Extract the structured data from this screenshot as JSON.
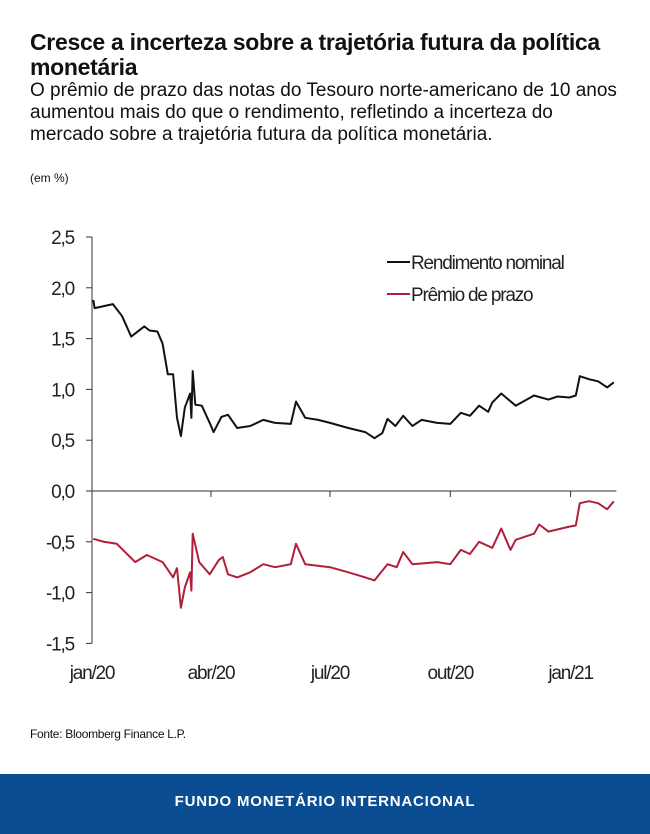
{
  "header": {
    "title": "Cresce a incerteza sobre a trajetória futura da política monetária",
    "subtitle": "O prêmio de prazo das notas do Tesouro norte-americano de 10 anos aumentou mais do que o rendimento, refletindo a incerteza do mercado sobre a trajetória futura da política monetária.",
    "unit": "(em %)"
  },
  "chart_data": {
    "type": "line",
    "title": "",
    "xlabel": "",
    "ylabel": "",
    "ylim": [
      -1.5,
      2.5
    ],
    "y_ticks": [
      "2,5",
      "2,0",
      "1,5",
      "1,0",
      "0,5",
      "0,0",
      "-0,5",
      "-1,0",
      "-1,5"
    ],
    "y_tick_values": [
      2.5,
      2.0,
      1.5,
      1.0,
      0.5,
      0.0,
      -0.5,
      -1.0,
      -1.5
    ],
    "x_ticks": [
      "jan/20",
      "abr/20",
      "jul/20",
      "out/20",
      "jan/21"
    ],
    "x_tick_dates": [
      "2020-01-01",
      "2020-04-01",
      "2020-07-01",
      "2020-10-01",
      "2021-01-01"
    ],
    "xlim": [
      "2020-01-01",
      "2021-02-05"
    ],
    "grid": false,
    "legend_position": "top-right",
    "series": [
      {
        "name": "Rendimento nominal",
        "color": "#111111",
        "points": [
          [
            "2020-01-02",
            1.88
          ],
          [
            "2020-01-03",
            1.8
          ],
          [
            "2020-01-10",
            1.82
          ],
          [
            "2020-01-17",
            1.84
          ],
          [
            "2020-01-24",
            1.72
          ],
          [
            "2020-01-31",
            1.52
          ],
          [
            "2020-02-10",
            1.62
          ],
          [
            "2020-02-14",
            1.58
          ],
          [
            "2020-02-20",
            1.57
          ],
          [
            "2020-02-24",
            1.45
          ],
          [
            "2020-02-28",
            1.15
          ],
          [
            "2020-03-03",
            1.15
          ],
          [
            "2020-03-06",
            0.72
          ],
          [
            "2020-03-09",
            0.54
          ],
          [
            "2020-03-12",
            0.82
          ],
          [
            "2020-03-16",
            0.96
          ],
          [
            "2020-03-17",
            0.72
          ],
          [
            "2020-03-18",
            1.18
          ],
          [
            "2020-03-20",
            0.85
          ],
          [
            "2020-03-25",
            0.84
          ],
          [
            "2020-03-31",
            0.67
          ],
          [
            "2020-04-03",
            0.58
          ],
          [
            "2020-04-09",
            0.73
          ],
          [
            "2020-04-14",
            0.75
          ],
          [
            "2020-04-21",
            0.62
          ],
          [
            "2020-05-01",
            0.64
          ],
          [
            "2020-05-11",
            0.7
          ],
          [
            "2020-05-20",
            0.67
          ],
          [
            "2020-06-01",
            0.66
          ],
          [
            "2020-06-05",
            0.88
          ],
          [
            "2020-06-12",
            0.72
          ],
          [
            "2020-06-22",
            0.7
          ],
          [
            "2020-07-01",
            0.67
          ],
          [
            "2020-07-15",
            0.62
          ],
          [
            "2020-07-28",
            0.58
          ],
          [
            "2020-08-04",
            0.52
          ],
          [
            "2020-08-10",
            0.57
          ],
          [
            "2020-08-14",
            0.71
          ],
          [
            "2020-08-20",
            0.64
          ],
          [
            "2020-08-26",
            0.74
          ],
          [
            "2020-09-02",
            0.64
          ],
          [
            "2020-09-09",
            0.7
          ],
          [
            "2020-09-21",
            0.67
          ],
          [
            "2020-10-01",
            0.66
          ],
          [
            "2020-10-09",
            0.77
          ],
          [
            "2020-10-16",
            0.74
          ],
          [
            "2020-10-23",
            0.84
          ],
          [
            "2020-10-30",
            0.78
          ],
          [
            "2020-11-02",
            0.87
          ],
          [
            "2020-11-09",
            0.96
          ],
          [
            "2020-11-20",
            0.84
          ],
          [
            "2020-12-04",
            0.94
          ],
          [
            "2020-12-15",
            0.9
          ],
          [
            "2020-12-22",
            0.93
          ],
          [
            "2020-12-31",
            0.92
          ],
          [
            "2021-01-05",
            0.94
          ],
          [
            "2021-01-08",
            1.13
          ],
          [
            "2021-01-15",
            1.1
          ],
          [
            "2021-01-22",
            1.08
          ],
          [
            "2021-01-29",
            1.02
          ],
          [
            "2021-02-03",
            1.07
          ]
        ]
      },
      {
        "name": "Prêmio de prazo",
        "color": "#b01f3a",
        "points": [
          [
            "2020-01-02",
            -0.47
          ],
          [
            "2020-01-10",
            -0.5
          ],
          [
            "2020-01-20",
            -0.52
          ],
          [
            "2020-02-03",
            -0.7
          ],
          [
            "2020-02-12",
            -0.63
          ],
          [
            "2020-02-24",
            -0.7
          ],
          [
            "2020-03-03",
            -0.85
          ],
          [
            "2020-03-06",
            -0.76
          ],
          [
            "2020-03-09",
            -1.15
          ],
          [
            "2020-03-12",
            -0.95
          ],
          [
            "2020-03-16",
            -0.8
          ],
          [
            "2020-03-17",
            -0.98
          ],
          [
            "2020-03-18",
            -0.42
          ],
          [
            "2020-03-23",
            -0.7
          ],
          [
            "2020-03-31",
            -0.82
          ],
          [
            "2020-04-07",
            -0.68
          ],
          [
            "2020-04-10",
            -0.65
          ],
          [
            "2020-04-14",
            -0.82
          ],
          [
            "2020-04-21",
            -0.85
          ],
          [
            "2020-05-01",
            -0.8
          ],
          [
            "2020-05-11",
            -0.72
          ],
          [
            "2020-05-20",
            -0.75
          ],
          [
            "2020-06-01",
            -0.72
          ],
          [
            "2020-06-05",
            -0.52
          ],
          [
            "2020-06-12",
            -0.72
          ],
          [
            "2020-07-01",
            -0.75
          ],
          [
            "2020-07-15",
            -0.8
          ],
          [
            "2020-07-28",
            -0.85
          ],
          [
            "2020-08-04",
            -0.88
          ],
          [
            "2020-08-14",
            -0.72
          ],
          [
            "2020-08-21",
            -0.75
          ],
          [
            "2020-08-26",
            -0.6
          ],
          [
            "2020-09-02",
            -0.72
          ],
          [
            "2020-09-21",
            -0.7
          ],
          [
            "2020-10-01",
            -0.72
          ],
          [
            "2020-10-09",
            -0.58
          ],
          [
            "2020-10-16",
            -0.62
          ],
          [
            "2020-10-23",
            -0.5
          ],
          [
            "2020-11-02",
            -0.56
          ],
          [
            "2020-11-09",
            -0.37
          ],
          [
            "2020-11-16",
            -0.58
          ],
          [
            "2020-11-20",
            -0.48
          ],
          [
            "2020-12-04",
            -0.42
          ],
          [
            "2020-12-08",
            -0.33
          ],
          [
            "2020-12-15",
            -0.4
          ],
          [
            "2020-12-31",
            -0.35
          ],
          [
            "2021-01-05",
            -0.34
          ],
          [
            "2021-01-08",
            -0.12
          ],
          [
            "2021-01-15",
            -0.1
          ],
          [
            "2021-01-22",
            -0.12
          ],
          [
            "2021-01-29",
            -0.18
          ],
          [
            "2021-02-03",
            -0.1
          ]
        ]
      }
    ]
  },
  "source": "Fonte: Bloomberg Finance L.P.",
  "footer": {
    "brand": "FUNDO MONETÁRIO INTERNACIONAL",
    "color": "#0b4d92"
  }
}
